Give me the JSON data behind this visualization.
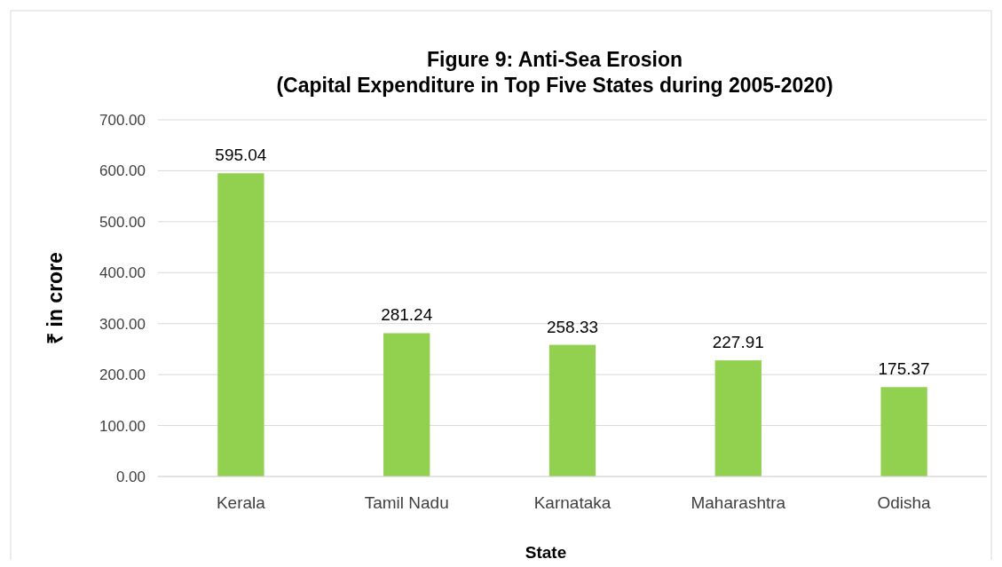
{
  "chart_data": {
    "type": "bar",
    "title": "Figure 9: Anti-Sea Erosion",
    "subtitle": "(Capital Expenditure in Top Five States during 2005-2020)",
    "xlabel": "State",
    "ylabel": "₹ in crore",
    "categories": [
      "Kerala",
      "Tamil Nadu",
      "Karnataka",
      "Maharashtra",
      "Odisha"
    ],
    "values": [
      595.04,
      281.24,
      258.33,
      227.91,
      175.37
    ],
    "color": "#92d050",
    "ylim": [
      0,
      700
    ],
    "yticks": [
      {
        "value": 0,
        "label": "0.00"
      },
      {
        "value": 100,
        "label": "100.00"
      },
      {
        "value": 200,
        "label": "200.00"
      },
      {
        "value": 300,
        "label": "300.00"
      },
      {
        "value": 400,
        "label": "400.00"
      },
      {
        "value": 500,
        "label": "500.00"
      },
      {
        "value": 600,
        "label": "600.00"
      },
      {
        "value": 700,
        "label": "700.00"
      }
    ],
    "grid": "y",
    "data_labels": true
  }
}
